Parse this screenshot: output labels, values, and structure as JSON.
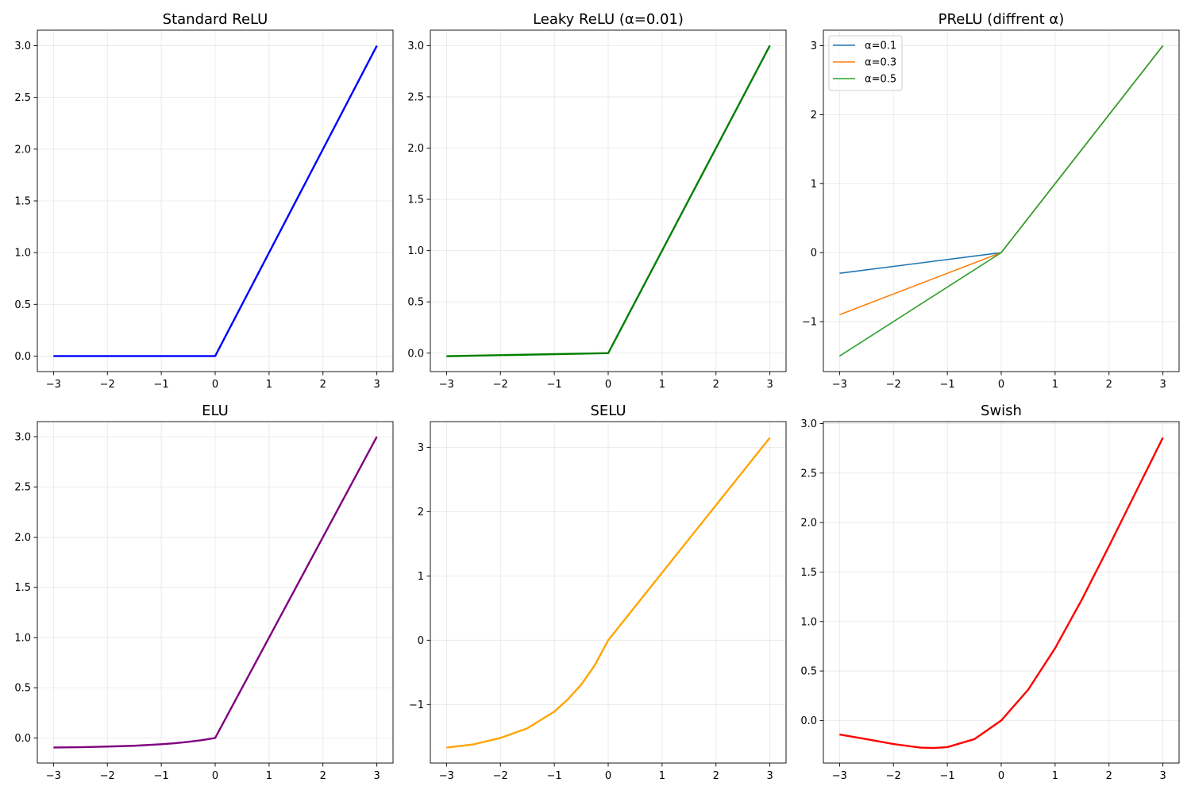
{
  "chart_data": [
    {
      "type": "line",
      "title": "Standard ReLU",
      "xlabel": "",
      "ylabel": "",
      "xlim": [
        -3.3,
        3.3
      ],
      "ylim": [
        -0.15,
        3.15
      ],
      "xticks": [
        -3,
        -2,
        -1,
        0,
        1,
        2,
        3
      ],
      "xtick_labels": [
        "−3",
        "−2",
        "−1",
        "0",
        "1",
        "2",
        "3"
      ],
      "yticks": [
        0,
        0.5,
        1,
        1.5,
        2,
        2.5,
        3
      ],
      "ytick_labels": [
        "0.0",
        "0.5",
        "1.0",
        "1.5",
        "2.0",
        "2.5",
        "3.0"
      ],
      "grid": true,
      "series": [
        {
          "color": "#0000ff",
          "x": [
            -3,
            0,
            3
          ],
          "y": [
            0,
            0,
            3
          ]
        }
      ]
    },
    {
      "type": "line",
      "title": "Leaky ReLU (α=0.01)",
      "xlabel": "",
      "ylabel": "",
      "xlim": [
        -3.3,
        3.3
      ],
      "ylim": [
        -0.18,
        3.15
      ],
      "xticks": [
        -3,
        -2,
        -1,
        0,
        1,
        2,
        3
      ],
      "xtick_labels": [
        "−3",
        "−2",
        "−1",
        "0",
        "1",
        "2",
        "3"
      ],
      "yticks": [
        0,
        0.5,
        1,
        1.5,
        2,
        2.5,
        3
      ],
      "ytick_labels": [
        "0.0",
        "0.5",
        "1.0",
        "1.5",
        "2.0",
        "2.5",
        "3.0"
      ],
      "grid": true,
      "series": [
        {
          "color": "#008000",
          "x": [
            -3,
            0,
            3
          ],
          "y": [
            -0.03,
            0,
            3
          ]
        }
      ]
    },
    {
      "type": "line",
      "title": "PReLU (diffrent α)",
      "xlabel": "",
      "ylabel": "",
      "xlim": [
        -3.3,
        3.3
      ],
      "ylim": [
        -1.725,
        3.225
      ],
      "xticks": [
        -3,
        -2,
        -1,
        0,
        1,
        2,
        3
      ],
      "xtick_labels": [
        "−3",
        "−2",
        "−1",
        "0",
        "1",
        "2",
        "3"
      ],
      "yticks": [
        -1,
        0,
        1,
        2,
        3
      ],
      "ytick_labels": [
        "−1",
        "0",
        "1",
        "2",
        "3"
      ],
      "grid": true,
      "legend": "top-left",
      "series": [
        {
          "name": "α=0.1",
          "color": "#1f77b4",
          "x": [
            -3,
            0,
            3
          ],
          "y": [
            -0.3,
            0,
            3
          ]
        },
        {
          "name": "α=0.3",
          "color": "#ff7f0e",
          "x": [
            -3,
            0,
            3
          ],
          "y": [
            -0.9,
            0,
            3
          ]
        },
        {
          "name": "α=0.5",
          "color": "#2ca02c",
          "x": [
            -3,
            0,
            3
          ],
          "y": [
            -1.5,
            0,
            3
          ]
        }
      ]
    },
    {
      "type": "line",
      "title": "ELU",
      "xlabel": "",
      "ylabel": "",
      "xlim": [
        -3.3,
        3.3
      ],
      "ylim": [
        -0.25,
        3.15
      ],
      "xticks": [
        -3,
        -2,
        -1,
        0,
        1,
        2,
        3
      ],
      "xtick_labels": [
        "−3",
        "−2",
        "−1",
        "0",
        "1",
        "2",
        "3"
      ],
      "yticks": [
        0,
        0.5,
        1,
        1.5,
        2,
        2.5,
        3
      ],
      "ytick_labels": [
        "0.0",
        "0.5",
        "1.0",
        "1.5",
        "2.0",
        "2.5",
        "3.0"
      ],
      "grid": true,
      "series": [
        {
          "color": "#800080",
          "x": [
            -3,
            -2.5,
            -2,
            -1.5,
            -1,
            -0.75,
            -0.5,
            -0.25,
            0,
            1,
            2,
            3
          ],
          "y": [
            -0.095,
            -0.092,
            -0.086,
            -0.078,
            -0.063,
            -0.053,
            -0.039,
            -0.022,
            0,
            1,
            2,
            3
          ]
        }
      ]
    },
    {
      "type": "line",
      "title": "SELU",
      "xlabel": "",
      "ylabel": "",
      "xlim": [
        -3.3,
        3.3
      ],
      "ylim": [
        -1.91,
        3.4
      ],
      "xticks": [
        -3,
        -2,
        -1,
        0,
        1,
        2,
        3
      ],
      "xtick_labels": [
        "−3",
        "−2",
        "−1",
        "0",
        "1",
        "2",
        "3"
      ],
      "yticks": [
        -1,
        0,
        1,
        2,
        3
      ],
      "ytick_labels": [
        "−1",
        "0",
        "1",
        "2",
        "3"
      ],
      "grid": true,
      "series": [
        {
          "color": "#ffa500",
          "x": [
            -3,
            -2.5,
            -2,
            -1.5,
            -1,
            -0.75,
            -0.5,
            -0.25,
            0,
            1,
            2,
            3
          ],
          "y": [
            -1.67,
            -1.62,
            -1.52,
            -1.37,
            -1.11,
            -0.92,
            -0.69,
            -0.39,
            0,
            1.05,
            2.1,
            3.15
          ]
        }
      ]
    },
    {
      "type": "line",
      "title": "Swish",
      "xlabel": "",
      "ylabel": "",
      "xlim": [
        -3.3,
        3.3
      ],
      "ylim": [
        -0.43,
        3.02
      ],
      "xticks": [
        -3,
        -2,
        -1,
        0,
        1,
        2,
        3
      ],
      "xtick_labels": [
        "−3",
        "−2",
        "−1",
        "0",
        "1",
        "2",
        "3"
      ],
      "yticks": [
        0,
        0.5,
        1,
        1.5,
        2,
        2.5,
        3
      ],
      "ytick_labels": [
        "0.0",
        "0.5",
        "1.0",
        "1.5",
        "2.0",
        "2.5",
        "3.0"
      ],
      "grid": true,
      "series": [
        {
          "color": "#ff0000",
          "x": [
            -3,
            -2.5,
            -2,
            -1.5,
            -1.25,
            -1,
            -0.5,
            0,
            0.5,
            1,
            1.5,
            2,
            2.5,
            3
          ],
          "y": [
            -0.142,
            -0.189,
            -0.238,
            -0.274,
            -0.278,
            -0.269,
            -0.189,
            0,
            0.311,
            0.731,
            1.226,
            1.762,
            2.311,
            2.858
          ]
        }
      ]
    }
  ]
}
